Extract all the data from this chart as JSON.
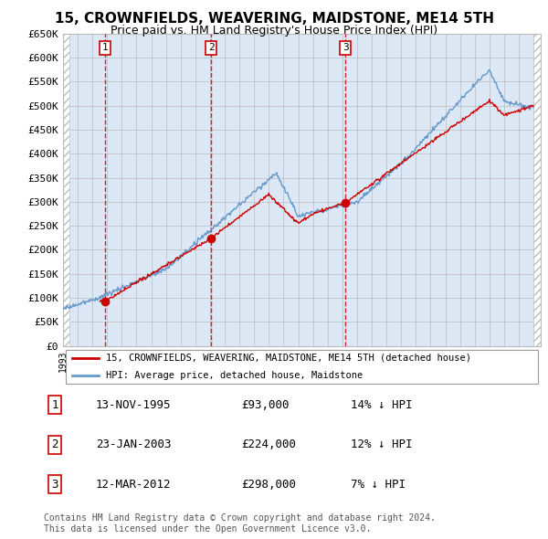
{
  "title": "15, CROWNFIELDS, WEAVERING, MAIDSTONE, ME14 5TH",
  "subtitle": "Price paid vs. HM Land Registry's House Price Index (HPI)",
  "ylim": [
    0,
    650000
  ],
  "yticks": [
    0,
    50000,
    100000,
    150000,
    200000,
    250000,
    300000,
    350000,
    400000,
    450000,
    500000,
    550000,
    600000,
    650000
  ],
  "ytick_labels": [
    "£0",
    "£50K",
    "£100K",
    "£150K",
    "£200K",
    "£250K",
    "£300K",
    "£350K",
    "£400K",
    "£450K",
    "£500K",
    "£550K",
    "£600K",
    "£650K"
  ],
  "xlim_start": 1993.0,
  "xlim_end": 2025.5,
  "sale_dates": [
    1995.87,
    2003.07,
    2012.21
  ],
  "sale_prices": [
    93000,
    224000,
    298000
  ],
  "sale_labels": [
    "1",
    "2",
    "3"
  ],
  "sale_date_strs": [
    "13-NOV-1995",
    "23-JAN-2003",
    "12-MAR-2012"
  ],
  "sale_price_strs": [
    "£93,000",
    "£224,000",
    "£298,000"
  ],
  "sale_pct_strs": [
    "14% ↓ HPI",
    "12% ↓ HPI",
    "7% ↓ HPI"
  ],
  "red_color": "#cc0000",
  "hpi_line_color": "#6699cc",
  "grid_color": "#bbbbbb",
  "bg_color": "#dce8f5",
  "hatch_color": "#bbbbbb",
  "legend_label_red": "15, CROWNFIELDS, WEAVERING, MAIDSTONE, ME14 5TH (detached house)",
  "legend_label_blue": "HPI: Average price, detached house, Maidstone",
  "footnote": "Contains HM Land Registry data © Crown copyright and database right 2024.\nThis data is licensed under the Open Government Licence v3.0."
}
